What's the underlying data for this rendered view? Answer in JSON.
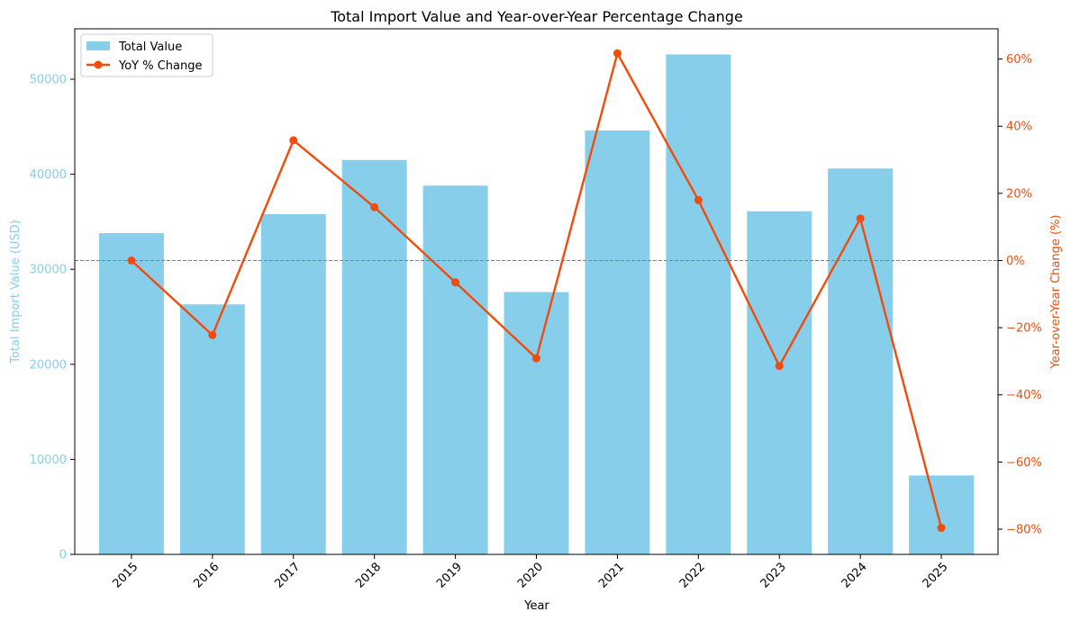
{
  "chart_data": {
    "type": "bar",
    "title": "Total Import Value and Year-over-Year Percentage Change",
    "xlabel": "Year",
    "ylabel_left": "Total Import Value (USD)",
    "ylabel_right": "Year-over-Year Change (%)",
    "categories": [
      "2015",
      "2016",
      "2017",
      "2018",
      "2019",
      "2020",
      "2021",
      "2022",
      "2023",
      "2024",
      "2025"
    ],
    "series": [
      {
        "name": "Total Value",
        "type": "bar",
        "axis": "left",
        "color": "#87CEEB",
        "values": [
          33800,
          26300,
          35800,
          41500,
          38800,
          27600,
          44600,
          52600,
          36100,
          40600,
          8300
        ]
      },
      {
        "name": "YoY % Change",
        "type": "line",
        "axis": "right",
        "color": "#F24C0C",
        "values": [
          0,
          -22.2,
          35.8,
          15.9,
          -6.5,
          -29.1,
          61.7,
          18.0,
          -31.4,
          12.5,
          -79.6
        ]
      }
    ],
    "ylim_left": [
      0,
      55300
    ],
    "yticks_left": [
      0,
      10000,
      20000,
      30000,
      40000,
      50000
    ],
    "ylim_right": [
      -87.5,
      69.0
    ],
    "yticks_right": [
      -80,
      -60,
      -40,
      -20,
      0,
      20,
      40,
      60
    ],
    "ytick_suffix_right": "%",
    "reference_line": {
      "axis": "right",
      "value": 0,
      "style": "dashed",
      "color": "#808080"
    },
    "legend": "top-left",
    "grid": false,
    "left_axis_color": "#87CEEB",
    "right_axis_color": "#F24C0C"
  }
}
